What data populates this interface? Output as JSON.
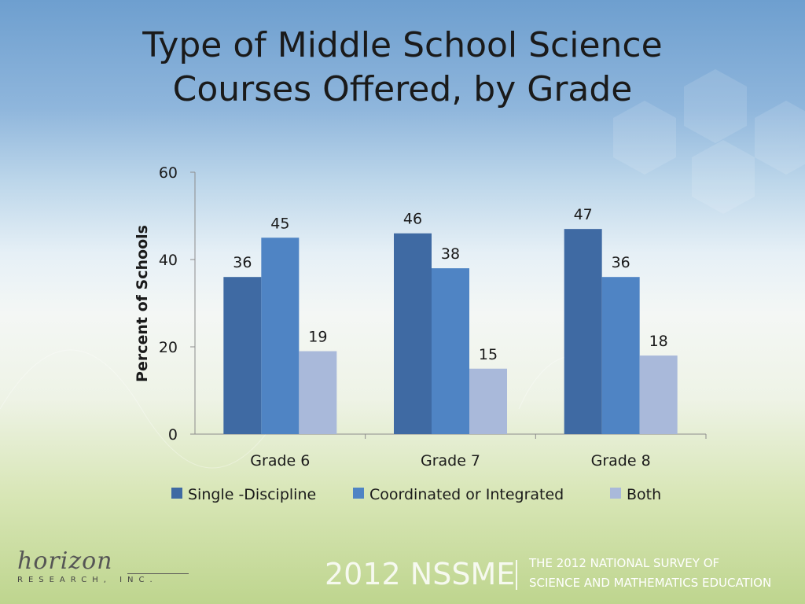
{
  "slide": {
    "title_line1": "Type of Middle School Science",
    "title_line2": "Courses Offered, by Grade"
  },
  "chart_data": {
    "type": "bar",
    "title": "Type of Middle School Science Courses Offered, by Grade",
    "xlabel": "",
    "ylabel": "Percent of Schools",
    "categories": [
      "Grade 6",
      "Grade 7",
      "Grade 8"
    ],
    "ylim": [
      0,
      60
    ],
    "yticks": [
      0,
      20,
      40,
      60
    ],
    "grid": false,
    "legend_position": "bottom",
    "series": [
      {
        "name": "Single -Discipline",
        "values": [
          36,
          46,
          47
        ],
        "color": "#3f6aa3"
      },
      {
        "name": "Coordinated or Integrated",
        "values": [
          45,
          38,
          36
        ],
        "color": "#4f84c4"
      },
      {
        "name": "Both",
        "values": [
          19,
          15,
          18
        ],
        "color": "#a9b9da"
      }
    ]
  },
  "footer": {
    "logo_script": "horizon",
    "logo_sub": "RESEARCH, INC.",
    "nssme": "2012 NSSME",
    "survey_line1": "THE 2012 NATIONAL SURVEY OF",
    "survey_line2": "SCIENCE AND MATHEMATICS EDUCATION"
  }
}
